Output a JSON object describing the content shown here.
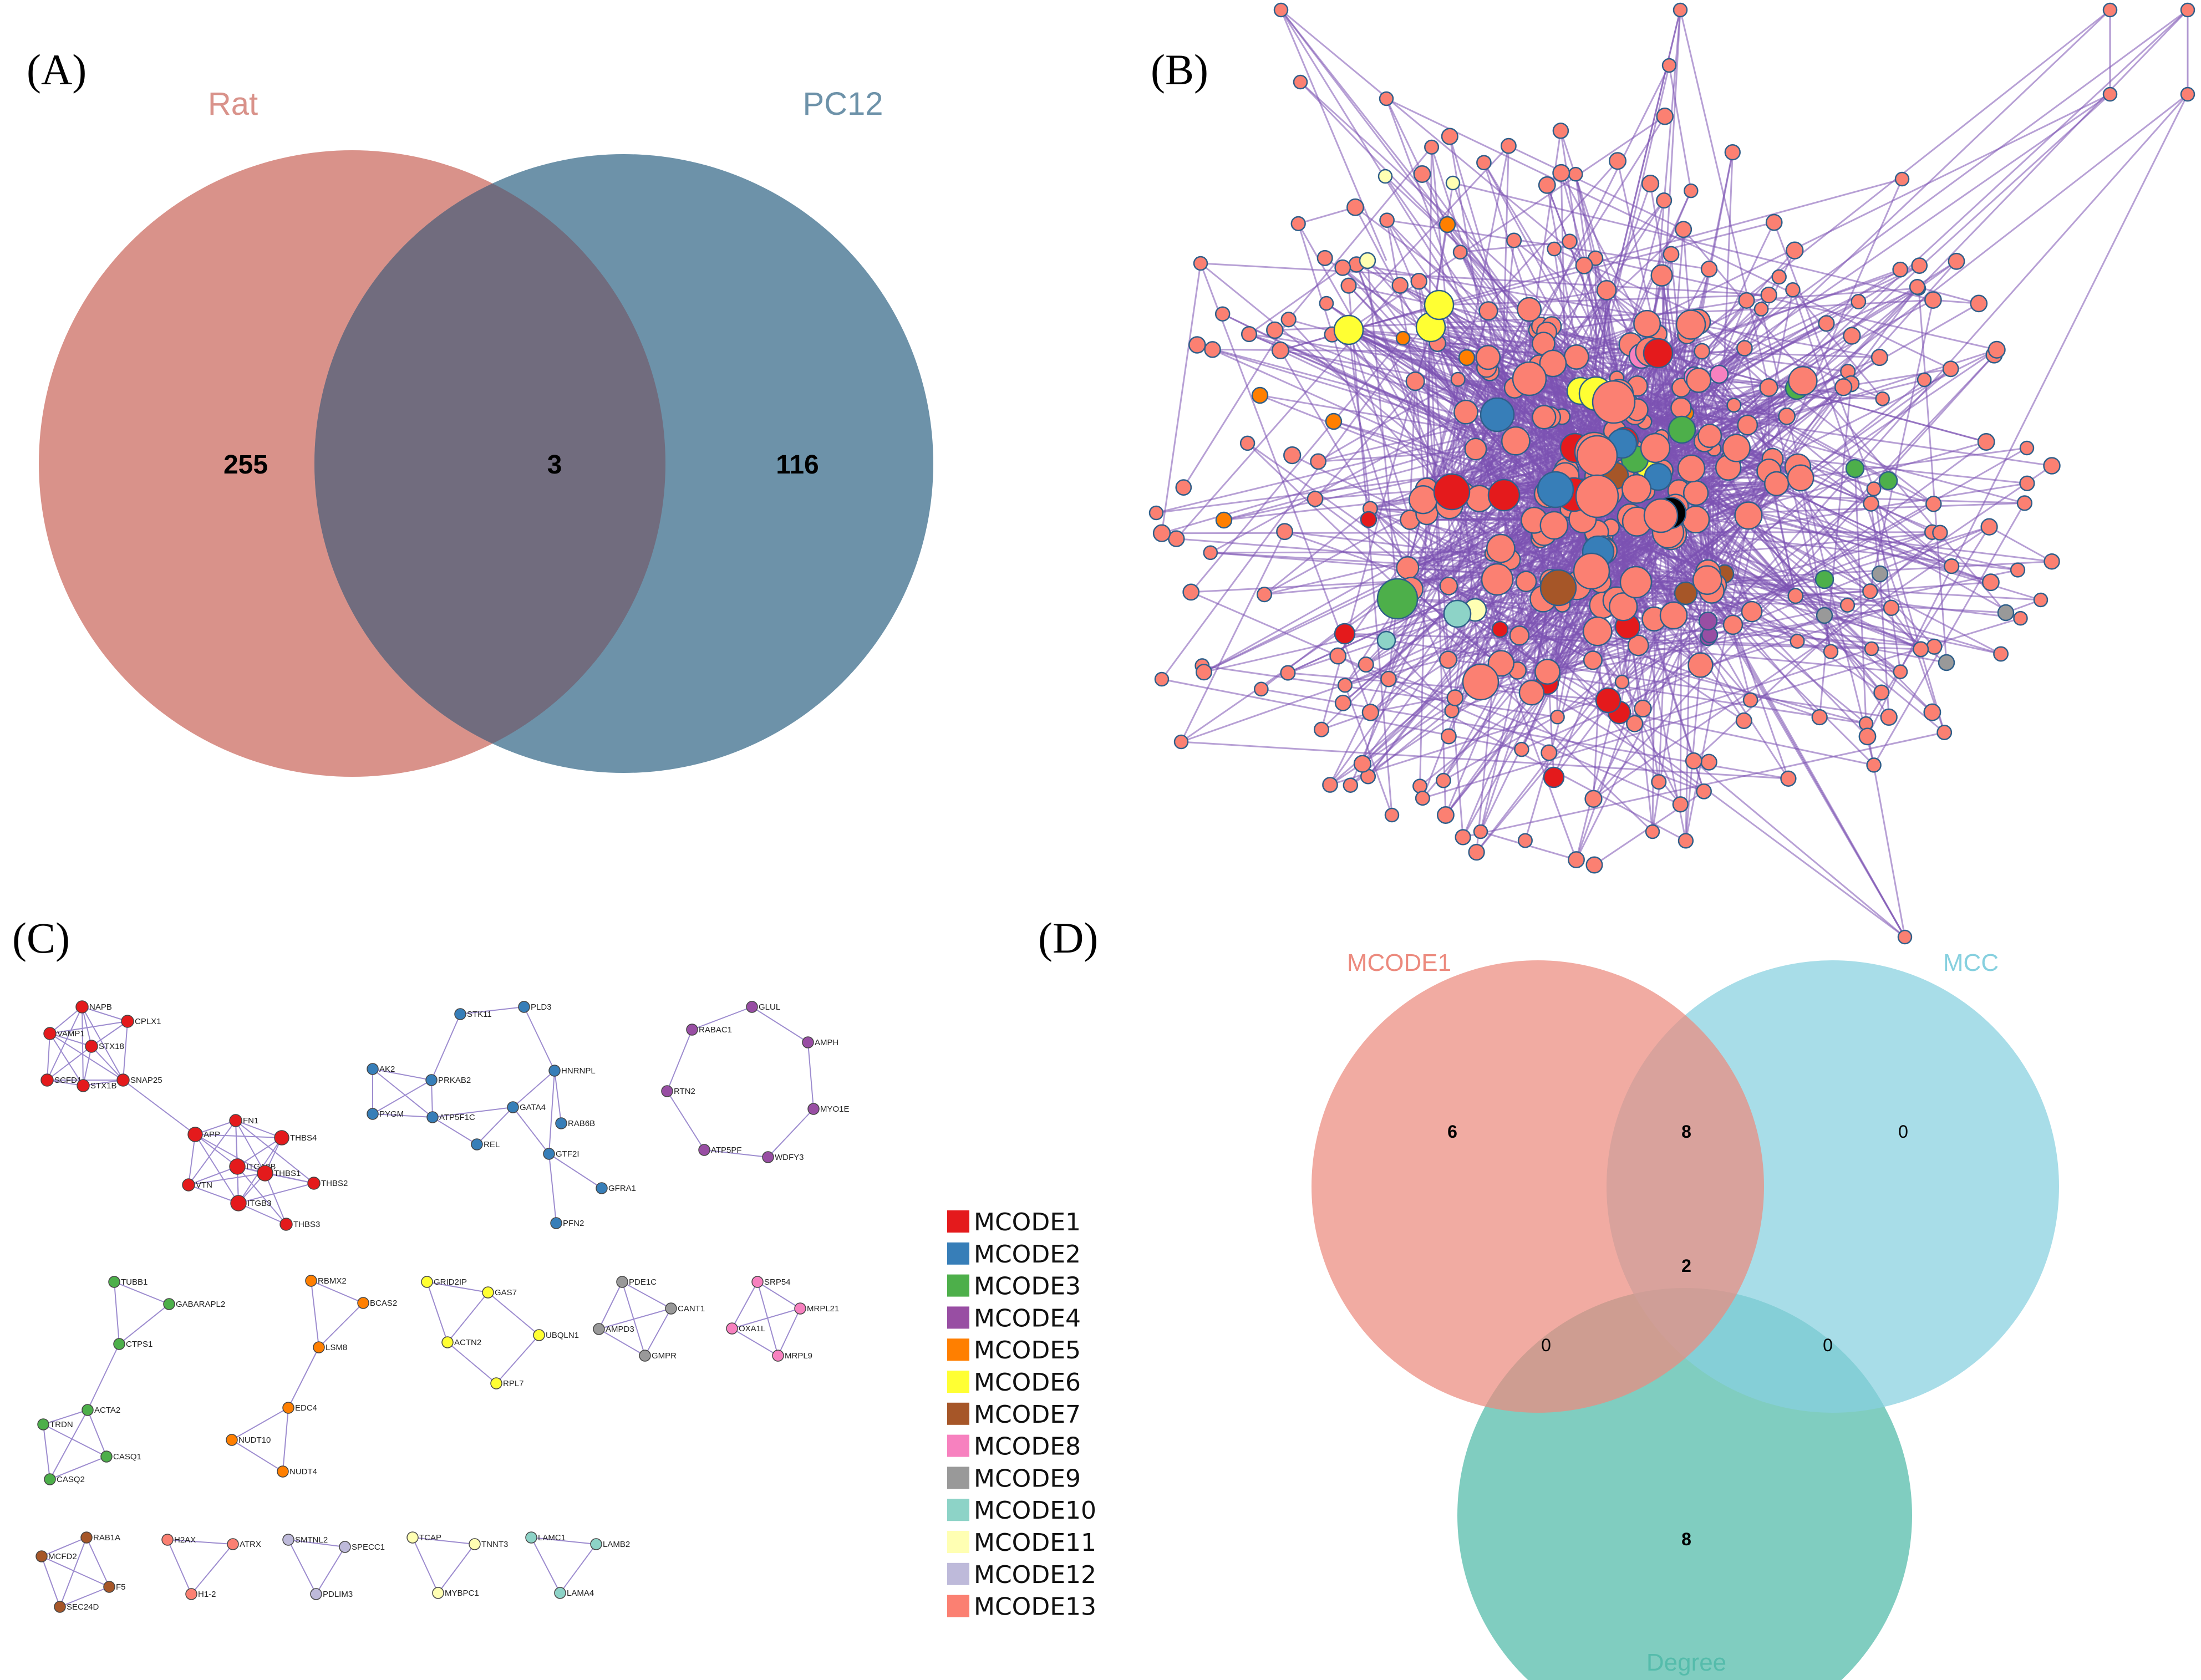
{
  "panels": {
    "a": {
      "label": "(A)",
      "sets": [
        {
          "name": "Rat",
          "color": "#d9928a"
        },
        {
          "name": "PC12",
          "color": "#6d92a9"
        }
      ],
      "counts": {
        "rat_only": "255",
        "overlap": "3",
        "pc12_only": "116"
      },
      "overlap_color": "#716c7e"
    },
    "b": {
      "label": "(B)",
      "edge_color": "#7b52b3",
      "node_color": "#b4bee0"
    },
    "c": {
      "label": "(C)",
      "clusters": [
        {
          "id": "c1",
          "module": 0,
          "genes": [
            "NAPB",
            "CPLX1",
            "VAMP1",
            "STX18",
            "SCFD1",
            "SNAP25",
            "STX1B",
            "APP",
            "FN1",
            "THBS4",
            "ITGA2B",
            "THBS1",
            "VTN",
            "THBS2",
            "ITGB3",
            "THBS3"
          ]
        },
        {
          "id": "c2",
          "module": 1,
          "genes": [
            "STK11",
            "PLD3",
            "AK2",
            "HNRNPL",
            "PRKAB2",
            "PYGM",
            "ATP5F1C",
            "GATA4",
            "RAB6B",
            "REL",
            "GTF2I",
            "GFRA1",
            "PFN2"
          ]
        },
        {
          "id": "c3",
          "module": 3,
          "genes": [
            "GLUL",
            "RABAC1",
            "AMPH",
            "RTN2",
            "MYO1E",
            "ATP5PF",
            "WDFY3"
          ]
        },
        {
          "id": "c4",
          "module": 2,
          "genes": [
            "TUBB1",
            "GABARAPL2",
            "CTPS1",
            "ACTA2",
            "TRDN",
            "CASQ1",
            "CASQ2"
          ]
        },
        {
          "id": "c5",
          "module": 4,
          "genes": [
            "RBMX2",
            "BCAS2",
            "LSM8",
            "EDC4",
            "NUDT10",
            "NUDT4"
          ]
        },
        {
          "id": "c6",
          "module": 5,
          "genes": [
            "GRID2IP",
            "GAS7",
            "ACTN2",
            "UBQLN1",
            "RPL7"
          ]
        },
        {
          "id": "c7",
          "module": 8,
          "genes": [
            "PDE1C",
            "CANT1",
            "AMPD3",
            "GMPR"
          ]
        },
        {
          "id": "c8",
          "module": 7,
          "genes": [
            "SRP54",
            "OXA1L",
            "MRPL21",
            "MRPL9"
          ]
        },
        {
          "id": "c9",
          "module": 6,
          "genes": [
            "RAB1A",
            "MCFD2",
            "F5",
            "SEC24D"
          ]
        },
        {
          "id": "c10",
          "module": 12,
          "genes": [
            "H2AX",
            "ATRX",
            "H1-2"
          ]
        },
        {
          "id": "c11",
          "module": 11,
          "genes": [
            "SMTNL2",
            "SPECC1",
            "PDLIM3"
          ]
        },
        {
          "id": "c12",
          "module": 10,
          "genes": [
            "TCAP",
            "TNNT3",
            "MYBPC1"
          ]
        },
        {
          "id": "c13",
          "module": 9,
          "genes": [
            "LAMC1",
            "LAMB2",
            "LAMA4"
          ]
        }
      ]
    },
    "d": {
      "label": "(D)",
      "sets": [
        {
          "name": "MCODE1",
          "color": "#ec8a7e"
        },
        {
          "name": "MCC",
          "color": "#86d0df"
        },
        {
          "name": "Degree",
          "color": "#55bcab"
        }
      ],
      "counts": {
        "mcode1_only": "6",
        "mcode1_mcc": "8",
        "mcc_only": "0",
        "all_three": "2",
        "mcode1_degree": "0",
        "mcc_degree": "0",
        "degree_only": "8"
      }
    }
  },
  "legend": {
    "items": [
      {
        "label": "MCODE1",
        "color": "#e41a1c"
      },
      {
        "label": "MCODE2",
        "color": "#377eb8"
      },
      {
        "label": "MCODE3",
        "color": "#4daf4a"
      },
      {
        "label": "MCODE4",
        "color": "#984ea3"
      },
      {
        "label": "MCODE5",
        "color": "#ff7f00"
      },
      {
        "label": "MCODE6",
        "color": "#ffff33"
      },
      {
        "label": "MCODE7",
        "color": "#a65628"
      },
      {
        "label": "MCODE8",
        "color": "#f781bf"
      },
      {
        "label": "MCODE9",
        "color": "#999999"
      },
      {
        "label": "MCODE10",
        "color": "#8dd3c7"
      },
      {
        "label": "MCODE11",
        "color": "#ffffb3"
      },
      {
        "label": "MCODE12",
        "color": "#bebada"
      },
      {
        "label": "MCODE13",
        "color": "#fb8072"
      }
    ]
  }
}
